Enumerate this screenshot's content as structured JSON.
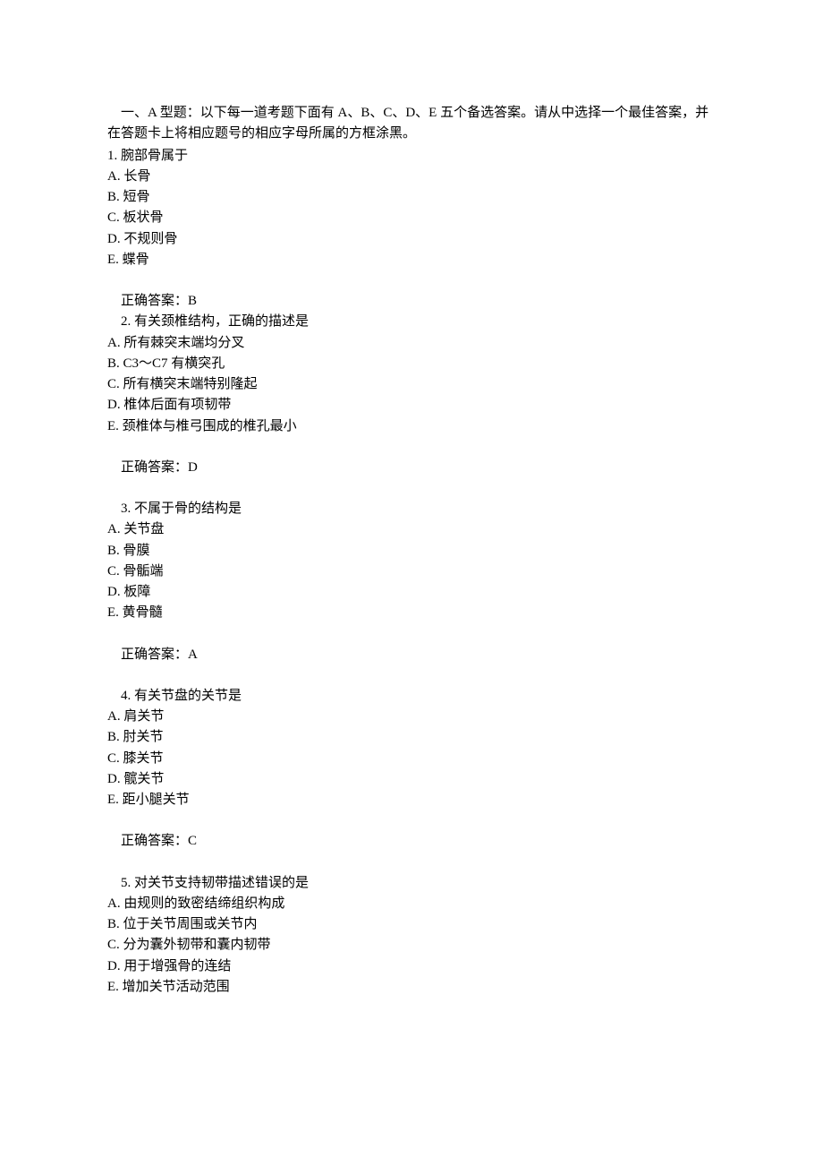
{
  "instruction": "一、A 型题：以下每一道考题下面有 A、B、C、D、E 五个备选答案。请从中选择一个最佳答案，并在答题卡上将相应题号的相应字母所属的方框涂黑。",
  "questions": [
    {
      "number": "1.",
      "text": "腕部骨属于",
      "indented": false,
      "options": [
        "A.  长骨",
        "B.  短骨",
        "C.  板状骨",
        "D.  不规则骨",
        "E.  蝶骨"
      ],
      "answer": "正确答案：B"
    },
    {
      "number": "2.",
      "text": "有关颈椎结构，正确的描述是",
      "indented": true,
      "options": [
        "A.  所有棘突末端均分叉",
        "B. C3～C7 有横突孔",
        "C.  所有横突末端特别隆起",
        "D.  椎体后面有项韧带",
        "E.  颈椎体与椎弓围成的椎孔最小"
      ],
      "answer": "正确答案：D"
    },
    {
      "number": "3.",
      "text": "不属于骨的结构是",
      "indented": true,
      "options": [
        "A.  关节盘",
        "B.  骨膜",
        "C.  骨骺端",
        "D.  板障",
        "E.  黄骨髓"
      ],
      "answer": "正确答案：A"
    },
    {
      "number": "4.",
      "text": "有关节盘的关节是",
      "indented": true,
      "options": [
        "A.  肩关节",
        "B.  肘关节",
        "C.  膝关节",
        "D.  髋关节",
        "E.  距小腿关节"
      ],
      "answer": "正确答案：C"
    },
    {
      "number": "5.",
      "text": "对关节支持韧带描述错误的是",
      "indented": true,
      "options": [
        "A.  由规则的致密结缔组织构成",
        "B.  位于关节周围或关节内",
        "C.  分为囊外韧带和囊内韧带",
        "D.  用于增强骨的连结",
        "E.  增加关节活动范围"
      ],
      "answer": null
    }
  ]
}
